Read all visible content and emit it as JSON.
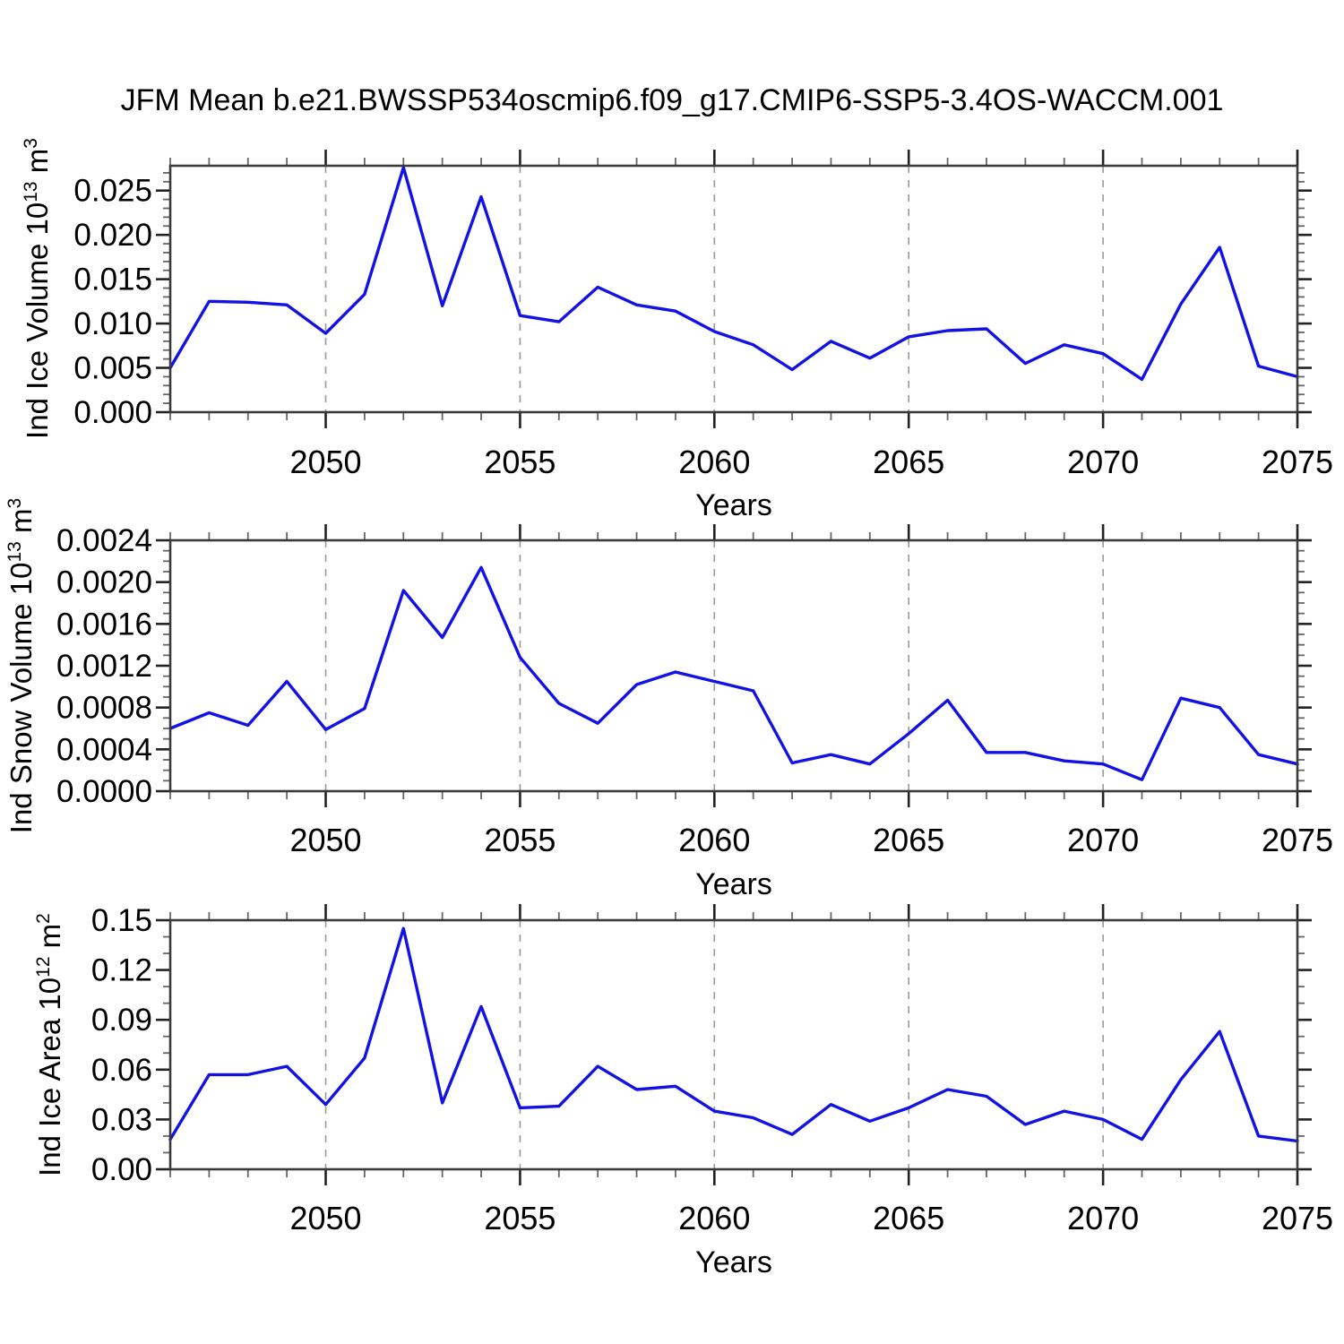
{
  "title": "JFM Mean b.e21.BWSSP534oscmip6.f09_g17.CMIP6-SSP5-3.4OS-WACCM.001",
  "line_color": "#1212e6",
  "grid_color": "#999999",
  "axis_color": "#3a3a3a",
  "chart_data": [
    {
      "type": "line",
      "xlabel": "Years",
      "ylabel": {
        "prefix": "Ind Ice Volume 10",
        "exp": "13",
        "unit": "m",
        "unit_exp": "3"
      },
      "x": [
        2046,
        2047,
        2048,
        2049,
        2050,
        2051,
        2052,
        2053,
        2054,
        2055,
        2056,
        2057,
        2058,
        2059,
        2060,
        2061,
        2062,
        2063,
        2064,
        2065,
        2066,
        2067,
        2068,
        2069,
        2070,
        2071,
        2072,
        2073,
        2074,
        2075
      ],
      "values": [
        0.005,
        0.0125,
        0.0124,
        0.0121,
        0.0089,
        0.0133,
        0.0276,
        0.012,
        0.0243,
        0.0109,
        0.0102,
        0.0141,
        0.0121,
        0.0114,
        0.0091,
        0.0076,
        0.0048,
        0.008,
        0.0061,
        0.0085,
        0.0092,
        0.0094,
        0.0055,
        0.0076,
        0.0066,
        0.0037,
        0.0122,
        0.0186,
        0.0052,
        0.004
      ],
      "xlim": [
        2046,
        2075
      ],
      "ylim": [
        0,
        0.0278
      ],
      "xticks": [
        2050,
        2055,
        2060,
        2065,
        2070,
        2075
      ],
      "xtick_labels": [
        "2050",
        "2055",
        "2060",
        "2065",
        "2070",
        "2075"
      ],
      "x_minor_step": 1,
      "yticks": [
        0,
        0.005,
        0.01,
        0.015,
        0.02,
        0.025
      ],
      "ytick_labels": [
        "0.000",
        "0.005",
        "0.010",
        "0.015",
        "0.020",
        "0.025"
      ],
      "y_minor_step": 0.001,
      "grid_years": [
        2050,
        2055,
        2060,
        2065,
        2070
      ],
      "grid_on": true,
      "legend": "none"
    },
    {
      "type": "line",
      "xlabel": "Years",
      "ylabel": {
        "prefix": "Ind Snow Volume 10",
        "exp": "13",
        "unit": "m",
        "unit_exp": "3"
      },
      "x": [
        2046,
        2047,
        2048,
        2049,
        2050,
        2051,
        2052,
        2053,
        2054,
        2055,
        2056,
        2057,
        2058,
        2059,
        2060,
        2061,
        2062,
        2063,
        2064,
        2065,
        2066,
        2067,
        2068,
        2069,
        2070,
        2071,
        2072,
        2073,
        2074,
        2075
      ],
      "values": [
        0.0006,
        0.00075,
        0.00063,
        0.00105,
        0.00059,
        0.00079,
        0.00192,
        0.00147,
        0.00214,
        0.00128,
        0.00084,
        0.00065,
        0.00102,
        0.00114,
        0.00105,
        0.00096,
        0.00027,
        0.00035,
        0.00026,
        0.00055,
        0.00087,
        0.00037,
        0.00037,
        0.00029,
        0.00026,
        0.00011,
        0.00089,
        0.0008,
        0.00035,
        0.00026
      ],
      "xlim": [
        2046,
        2075
      ],
      "ylim": [
        0,
        0.0024
      ],
      "xticks": [
        2050,
        2055,
        2060,
        2065,
        2070,
        2075
      ],
      "xtick_labels": [
        "2050",
        "2055",
        "2060",
        "2065",
        "2070",
        "2075"
      ],
      "x_minor_step": 1,
      "yticks": [
        0,
        0.0004,
        0.0008,
        0.0012,
        0.0016,
        0.002,
        0.0024
      ],
      "ytick_labels": [
        "0.0000",
        "0.0004",
        "0.0008",
        "0.0012",
        "0.0016",
        "0.0020",
        "0.0024"
      ],
      "y_minor_step": 0.0001,
      "grid_years": [
        2050,
        2055,
        2060,
        2065,
        2070
      ],
      "grid_on": true,
      "legend": "none"
    },
    {
      "type": "line",
      "xlabel": "Years",
      "ylabel": {
        "prefix": "Ind Ice Area 10",
        "exp": "12",
        "unit": "m",
        "unit_exp": "2"
      },
      "x": [
        2046,
        2047,
        2048,
        2049,
        2050,
        2051,
        2052,
        2053,
        2054,
        2055,
        2056,
        2057,
        2058,
        2059,
        2060,
        2061,
        2062,
        2063,
        2064,
        2065,
        2066,
        2067,
        2068,
        2069,
        2070,
        2071,
        2072,
        2073,
        2074,
        2075
      ],
      "values": [
        0.018,
        0.057,
        0.057,
        0.062,
        0.039,
        0.067,
        0.145,
        0.04,
        0.098,
        0.037,
        0.038,
        0.062,
        0.048,
        0.05,
        0.035,
        0.031,
        0.021,
        0.039,
        0.029,
        0.037,
        0.048,
        0.044,
        0.027,
        0.035,
        0.03,
        0.018,
        0.054,
        0.083,
        0.02,
        0.017
      ],
      "xlim": [
        2046,
        2075
      ],
      "ylim": [
        0,
        0.15
      ],
      "xticks": [
        2050,
        2055,
        2060,
        2065,
        2070,
        2075
      ],
      "xtick_labels": [
        "2050",
        "2055",
        "2060",
        "2065",
        "2070",
        "2075"
      ],
      "x_minor_step": 1,
      "yticks": [
        0,
        0.03,
        0.06,
        0.09,
        0.12,
        0.15
      ],
      "ytick_labels": [
        "0.00",
        "0.03",
        "0.06",
        "0.09",
        "0.12",
        "0.15"
      ],
      "y_minor_step": 0.01,
      "grid_years": [
        2050,
        2055,
        2060,
        2065,
        2070
      ],
      "grid_on": true,
      "legend": "none"
    }
  ]
}
